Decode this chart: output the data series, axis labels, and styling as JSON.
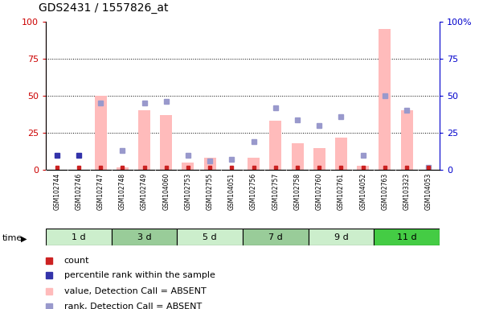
{
  "title": "GDS2431 / 1557826_at",
  "samples": [
    "GSM102744",
    "GSM102746",
    "GSM102747",
    "GSM102748",
    "GSM102749",
    "GSM104060",
    "GSM102753",
    "GSM102755",
    "GSM104051",
    "GSM102756",
    "GSM102757",
    "GSM102758",
    "GSM102760",
    "GSM102761",
    "GSM104052",
    "GSM102763",
    "GSM103323",
    "GSM104053"
  ],
  "pink_bar_values": [
    0,
    0,
    50,
    2,
    40,
    37,
    5,
    8,
    0,
    8,
    33,
    18,
    15,
    22,
    3,
    95,
    40,
    0
  ],
  "lavender_values": [
    0,
    0,
    45,
    13,
    45,
    46,
    10,
    6,
    7,
    19,
    42,
    34,
    30,
    36,
    10,
    50,
    40,
    2
  ],
  "percentile_values": [
    10,
    10,
    0,
    0,
    0,
    0,
    0,
    0,
    0,
    0,
    0,
    0,
    0,
    0,
    0,
    0,
    0,
    0
  ],
  "count_red_values": [
    1,
    1,
    1,
    1,
    1,
    1,
    1,
    1,
    1,
    1,
    1,
    1,
    1,
    1,
    1,
    1,
    1,
    1
  ],
  "time_groups": [
    {
      "label": "1 d",
      "start": 0,
      "end": 3,
      "color": "#cceecc"
    },
    {
      "label": "3 d",
      "start": 3,
      "end": 6,
      "color": "#99cc99"
    },
    {
      "label": "5 d",
      "start": 6,
      "end": 9,
      "color": "#cceecc"
    },
    {
      "label": "7 d",
      "start": 9,
      "end": 12,
      "color": "#99cc99"
    },
    {
      "label": "9 d",
      "start": 12,
      "end": 15,
      "color": "#cceecc"
    },
    {
      "label": "11 d",
      "start": 15,
      "end": 18,
      "color": "#44cc44"
    }
  ],
  "ylim": [
    0,
    100
  ],
  "grid_values": [
    25,
    50,
    75
  ],
  "left_ytick_labels": [
    "0",
    "25",
    "50",
    "75",
    "100"
  ],
  "left_ytick_values": [
    0,
    25,
    50,
    75,
    100
  ],
  "right_ytick_labels": [
    "0",
    "25",
    "50",
    "75",
    "100%"
  ],
  "right_ytick_values": [
    0,
    25,
    50,
    75,
    100
  ],
  "bar_color_pink": "#ffbbbb",
  "bar_color_count": "#cc2222",
  "dot_color_blue": "#3333aa",
  "dot_color_lavender": "#9999cc",
  "plot_bg_color": "#ffffff",
  "xtick_bg_color": "#cccccc",
  "left_axis_color": "#cc0000",
  "right_axis_color": "#0000cc",
  "legend_items": [
    {
      "color": "#cc2222",
      "marker": "s",
      "label": "count"
    },
    {
      "color": "#3333aa",
      "marker": "s",
      "label": "percentile rank within the sample"
    },
    {
      "color": "#ffbbbb",
      "marker": "s",
      "label": "value, Detection Call = ABSENT"
    },
    {
      "color": "#9999cc",
      "marker": "s",
      "label": "rank, Detection Call = ABSENT"
    }
  ]
}
